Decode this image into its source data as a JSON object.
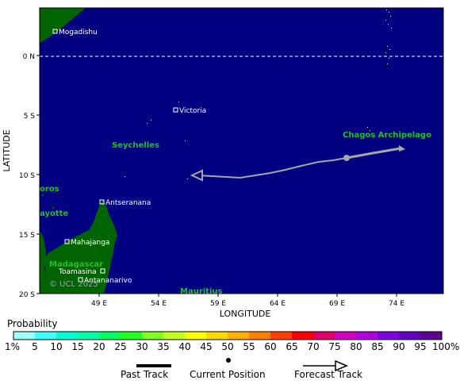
{
  "axes": {
    "xlabel": "LONGITUDE",
    "ylabel": "LATITUDE",
    "x_ticks": [
      "49 E",
      "54 E",
      "59 E",
      "64 E",
      "69 E",
      "74 E"
    ],
    "y_ticks": [
      "0 N",
      "5 S",
      "10 S",
      "15 S",
      "20 S"
    ]
  },
  "map_labels": {
    "cities": [
      "Mogadishu",
      "Victoria",
      "Antseranana",
      "Mahajanga",
      "Toamasina",
      "Antananarivo"
    ],
    "regions": [
      "Seychelles",
      "Chagos Archipelago",
      "oros",
      "ayotte",
      "Madagascar",
      "Mauritius"
    ],
    "copyright": "© UCL 2025"
  },
  "colors": {
    "ocean": "#000080",
    "land": "#006400",
    "region_label": "#22c022",
    "track": "#a6a6a6"
  },
  "probability": {
    "title": "Probability",
    "labels": [
      "1%",
      "5",
      "10",
      "15",
      "20",
      "25",
      "30",
      "35",
      "40",
      "45",
      "50",
      "55",
      "60",
      "65",
      "70",
      "75",
      "80",
      "85",
      "90",
      "95",
      "100%"
    ],
    "colors": [
      "#a0ffff",
      "#40ffff",
      "#00ffd8",
      "#00ffa8",
      "#00ff60",
      "#20ff20",
      "#80ff20",
      "#c0ff20",
      "#ffff00",
      "#ffd800",
      "#ffb000",
      "#ff8000",
      "#ff4000",
      "#ff0000",
      "#e0006a",
      "#d000c0",
      "#b000e0",
      "#8000e0",
      "#6000c0",
      "#600090"
    ]
  },
  "legend": {
    "past_track": "Past Track",
    "current_position": "Current Position",
    "forecast_track": "Forecast Track"
  }
}
